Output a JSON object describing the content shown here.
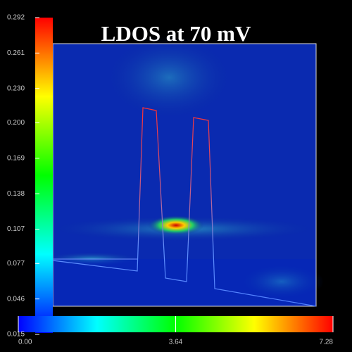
{
  "chart_data": {
    "type": "heatmap",
    "title": "LDOS at 70 mV",
    "ylim": [
      0.015,
      0.292
    ],
    "yticks": [
      0.015,
      0.046,
      0.077,
      0.107,
      0.138,
      0.169,
      {
        "value": 0.2,
        "label": "0.200"
      },
      {
        "value": 0.23,
        "label": "0.230"
      },
      0.261,
      0.292
    ],
    "xlim": [
      0,
      7.28
    ],
    "xticks": [
      {
        "value": 0,
        "label": "0.00"
      },
      3.64,
      7.28
    ]
  }
}
